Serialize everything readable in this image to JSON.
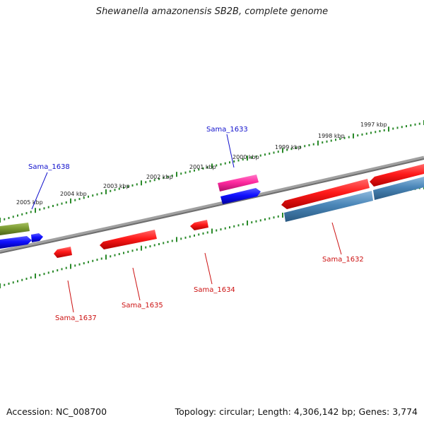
{
  "title": "Shewanella amazonensis SB2B, complete genome",
  "footer": {
    "accession": "Accession: NC_008700",
    "summary": "Topology: circular; Length: 4,306,142 bp; Genes: 3,774"
  },
  "colors": {
    "forward_red": "#ff1a1a",
    "blue": "#1010ff",
    "steel_blue": "#4a86b8",
    "magenta": "#ff2aa0",
    "olive": "#7a9a30",
    "backbone": "#808080",
    "ticks": "#2a8a2a",
    "label_blue": "#1010cc",
    "label_red": "#cc1111"
  },
  "scale_labels": [
    "2005 kbp",
    "2004 kbp",
    "2003 kbp",
    "2002 kbp",
    "2001 kbp",
    "2000 kbp",
    "1999 kbp",
    "1998 kbp",
    "1997 kbp"
  ],
  "gene_labels": [
    {
      "text": "Sama_1638",
      "color": "blue"
    },
    {
      "text": "Sama_1633",
      "color": "blue"
    },
    {
      "text": "Sama_1637",
      "color": "red"
    },
    {
      "text": "Sama_1635",
      "color": "red"
    },
    {
      "text": "Sama_1634",
      "color": "red"
    },
    {
      "text": "Sama_1632",
      "color": "red"
    }
  ]
}
